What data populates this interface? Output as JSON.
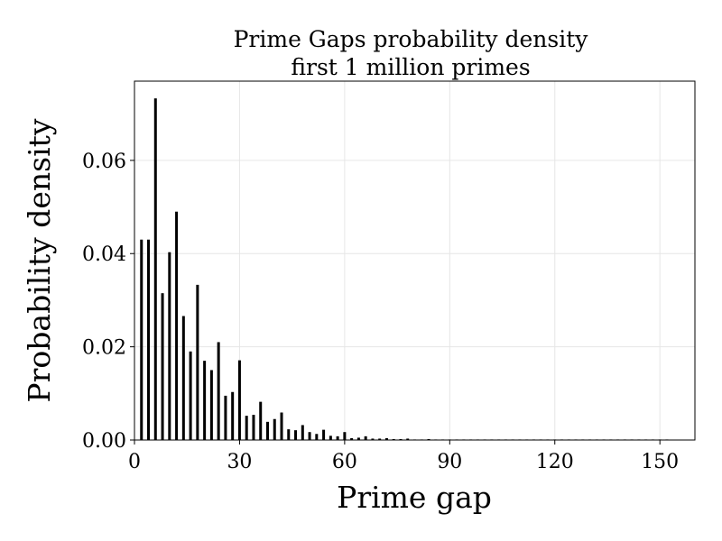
{
  "chart_data": {
    "type": "bar",
    "title": "Prime Gaps probability density",
    "subtitle": "first 1 million primes",
    "xlabel": "Prime gap",
    "ylabel": "Probability density",
    "xlim": [
      0,
      160
    ],
    "ylim": [
      0,
      0.077
    ],
    "xticks": [
      0,
      30,
      60,
      90,
      120,
      150
    ],
    "xtick_labels": [
      "0",
      "30",
      "60",
      "90",
      "120",
      "150"
    ],
    "yticks": [
      0.0,
      0.02,
      0.04,
      0.06
    ],
    "ytick_labels": [
      "0.00",
      "0.02",
      "0.04",
      "0.06"
    ],
    "grid": true,
    "bar_color": "#000000",
    "grid_color": "#e6e6e6",
    "x": [
      2,
      4,
      6,
      8,
      10,
      12,
      14,
      16,
      18,
      20,
      22,
      24,
      26,
      28,
      30,
      32,
      34,
      36,
      38,
      40,
      42,
      44,
      46,
      48,
      50,
      52,
      54,
      56,
      58,
      60,
      62,
      64,
      66,
      68,
      70,
      72,
      74,
      76,
      78,
      80,
      82,
      84,
      86,
      88,
      90,
      92,
      94,
      96,
      98,
      100,
      102,
      104,
      106,
      108,
      110,
      112,
      114,
      116,
      118,
      120,
      122,
      124,
      126,
      128,
      130,
      132,
      134,
      136,
      138,
      140,
      142,
      144,
      146,
      148,
      150,
      152
    ],
    "values": [
      0.043,
      0.043,
      0.0733,
      0.0315,
      0.0403,
      0.049,
      0.0266,
      0.019,
      0.0333,
      0.017,
      0.015,
      0.021,
      0.0095,
      0.0103,
      0.0171,
      0.0052,
      0.0054,
      0.0082,
      0.0039,
      0.0045,
      0.0059,
      0.0023,
      0.0021,
      0.0032,
      0.0017,
      0.0013,
      0.0022,
      0.0009,
      0.0008,
      0.0017,
      0.0004,
      0.0005,
      0.0008,
      0.0003,
      0.0003,
      0.0004,
      0.0002,
      0.0002,
      0.0003,
      0.0001,
      0.0001,
      0.0002,
      0.0001,
      0.0001,
      0.0001,
      5e-05,
      4e-05,
      5e-05,
      3e-05,
      3e-05,
      3e-05,
      2e-05,
      2e-05,
      2e-05,
      2e-05,
      1e-05,
      1e-05,
      1e-05,
      1e-05,
      1e-05,
      5e-06,
      5e-06,
      5e-06,
      4e-06,
      4e-06,
      4e-06,
      3e-06,
      3e-06,
      3e-06,
      2e-06,
      2e-06,
      2e-06,
      2e-06,
      1e-06,
      1e-06,
      1e-06
    ]
  }
}
